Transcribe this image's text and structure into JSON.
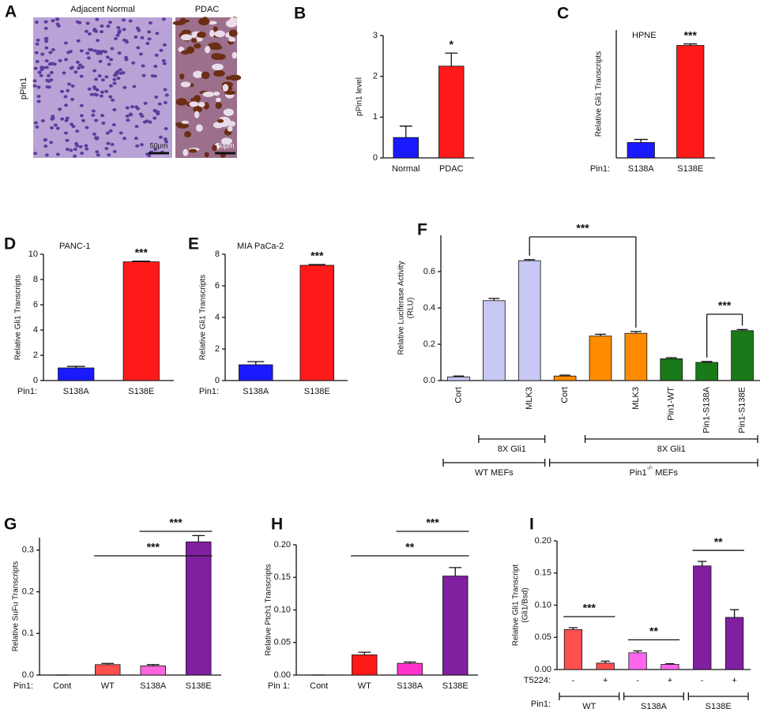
{
  "image_panel": {
    "panel": "A",
    "ylabel": "pPin1",
    "images": [
      {
        "title": "Adjacent Normal",
        "scale_label": "50μm"
      },
      {
        "title": "PDAC",
        "scale_label": "50μm"
      }
    ]
  },
  "chart_data": [
    {
      "type": "bar",
      "panel": "B",
      "ylabel": "pPin1 level",
      "categories": [
        "Normal",
        "PDAC"
      ],
      "values": [
        0.5,
        2.25
      ],
      "errors": [
        0.28,
        0.32
      ],
      "colors": [
        "#1a1aff",
        "#ff1a1a"
      ],
      "ylim": [
        0,
        3
      ],
      "yticks": [
        0,
        1,
        2,
        3
      ],
      "annotations": [
        {
          "text": "*",
          "at": 1
        }
      ]
    },
    {
      "type": "bar",
      "panel": "C",
      "title": "HPNE",
      "ylabel": "Relative Gli1 Transcripts",
      "row_label": "Pin1:",
      "categories": [
        "S138A",
        "S138E"
      ],
      "values": [
        1.0,
        7.3
      ],
      "errors": [
        0.2,
        0.1
      ],
      "colors": [
        "#1a1aff",
        "#ff1a1a"
      ],
      "ylim": [
        0,
        8.3
      ],
      "annotations": [
        {
          "text": "***",
          "at": 1
        }
      ]
    },
    {
      "type": "bar",
      "panel": "D",
      "title": "PANC-1",
      "ylabel": "Relative Gli1 Transcripts",
      "row_label": "Pin1:",
      "categories": [
        "S138A",
        "S138E"
      ],
      "values": [
        1.0,
        9.4
      ],
      "errors": [
        0.12,
        0.05
      ],
      "colors": [
        "#1a1aff",
        "#ff1a1a"
      ],
      "ylim": [
        0,
        10
      ],
      "yticks": [
        0,
        2,
        4,
        6,
        8,
        10
      ],
      "annotations": [
        {
          "text": "***",
          "at": 1
        }
      ]
    },
    {
      "type": "bar",
      "panel": "E",
      "title": "MIA PaCa-2",
      "ylabel": "Relative Gli1 Transcripts",
      "row_label": "Pin1:",
      "categories": [
        "S138A",
        "S138E"
      ],
      "values": [
        1.0,
        7.3
      ],
      "errors": [
        0.2,
        0.05
      ],
      "colors": [
        "#1a1aff",
        "#ff1a1a"
      ],
      "ylim": [
        0,
        8
      ],
      "yticks": [
        0,
        2,
        4,
        6,
        8
      ],
      "annotations": [
        {
          "text": "***",
          "at": 1
        }
      ]
    },
    {
      "type": "bar",
      "panel": "F",
      "ylabel": [
        "Relative Luciferase Activity",
        "(RLU)"
      ],
      "categories": [
        "Cort",
        null,
        "MLK3",
        "Cort",
        null,
        "MLK3",
        "Pin1-WT",
        "Pin1-S138A",
        "Pin1-S138E"
      ],
      "values": [
        0.02,
        0.44,
        0.66,
        0.025,
        0.245,
        0.26,
        0.12,
        0.1,
        0.275
      ],
      "errors": [
        0.005,
        0.012,
        0.006,
        0.005,
        0.01,
        0.01,
        0.006,
        0.005,
        0.006
      ],
      "colors": [
        "#c8c8f4",
        "#c8c8f4",
        "#c8c8f4",
        "#ff8c00",
        "#ff8c00",
        "#ff8c00",
        "#1a7a1a",
        "#1a7a1a",
        "#1a7a1a"
      ],
      "ylim": [
        0,
        0.8
      ],
      "yticks": [
        {
          "value": 0,
          "label": "0.0"
        },
        0.2,
        0.4,
        0.6
      ],
      "annotations": [
        {
          "text": "***",
          "from": 2,
          "to": 5
        },
        {
          "text": "***",
          "from": 7,
          "to": 8
        }
      ],
      "group_rows": [
        {
          "groups": [
            {
              "label": "8X Gli1",
              "from": 1,
              "to": 2
            },
            {
              "label": "8X Gli1",
              "from": 4,
              "to": 8
            }
          ]
        },
        {
          "groups": [
            {
              "label": "WT MEFs",
              "from": 0,
              "to": 2
            },
            {
              "label": "Pin1",
              "superscript": "-/-",
              "suffix": "MEFs",
              "from": 3,
              "to": 8
            }
          ]
        }
      ]
    },
    {
      "type": "bar",
      "panel": "G",
      "ylabel": "Relative SuFu Transcripts",
      "row_label": "Pin1:",
      "categories": [
        "Cont",
        "WT",
        "S138A",
        "S138E"
      ],
      "values": [
        0,
        0.025,
        0.022,
        0.32
      ],
      "errors": [
        0,
        0.003,
        0.003,
        0.015
      ],
      "colors": [
        "#ff5050",
        "#ff5050",
        "#ff66dd",
        "#8020a0"
      ],
      "ylim": [
        0,
        0.33
      ],
      "yticks": [
        {
          "value": 0,
          "label": "0.0"
        },
        0.1,
        0.2,
        0.3
      ],
      "annotations": [
        {
          "text": "***",
          "from": 2,
          "to": 3
        },
        {
          "text": "***",
          "from": 1,
          "to": 3
        }
      ]
    },
    {
      "type": "bar",
      "panel": "H",
      "ylabel": "Relative Ptch1 Transcripts",
      "row_label": "Pin 1:",
      "categories": [
        "Cont",
        "WT",
        "S138A",
        "S138E"
      ],
      "values": [
        0,
        0.031,
        0.018,
        0.152
      ],
      "errors": [
        0,
        0.004,
        0.002,
        0.013
      ],
      "colors": [
        "#ff1a1a",
        "#ff1a1a",
        "#ff33cc",
        "#8020a0"
      ],
      "ylim": [
        0,
        0.2
      ],
      "yticks": [
        {
          "value": 0,
          "label": "0.00"
        },
        0.05,
        {
          "value": 0.1,
          "label": "0.10"
        },
        0.15,
        {
          "value": 0.2,
          "label": "0.20"
        }
      ],
      "annotations": [
        {
          "text": "***",
          "from": 2,
          "to": 3
        },
        {
          "text": "**",
          "from": 1,
          "to": 3
        }
      ]
    },
    {
      "type": "bar",
      "panel": "I",
      "ylabel": [
        "Relative Gli1 Transcript",
        "(Gli1/Bsd)"
      ],
      "row_label": "T5224:",
      "categories": [
        "-",
        "+",
        "-",
        "+",
        "-",
        "+"
      ],
      "values": [
        0.062,
        0.01,
        0.026,
        0.008,
        0.161,
        0.081
      ],
      "errors": [
        0.003,
        0.003,
        0.003,
        0.001,
        0.007,
        0.012
      ],
      "colors": [
        "#ff5050",
        "#ff5050",
        "#ff66ee",
        "#ff66ee",
        "#8020a0",
        "#8020a0"
      ],
      "ylim": [
        0,
        0.2
      ],
      "yticks": [
        {
          "value": 0,
          "label": "0.00"
        },
        0.05,
        {
          "value": 0.1,
          "label": "0.10"
        },
        0.15,
        {
          "value": 0.2,
          "label": "0.20"
        }
      ],
      "annotations": [
        {
          "text": "***",
          "from": 0,
          "to": 1
        },
        {
          "text": "**",
          "from": 2,
          "to": 3
        },
        {
          "text": "**",
          "from": 4,
          "to": 5
        }
      ],
      "group_rows": [
        {
          "label": "Pin1:",
          "groups": [
            {
              "label": "WT",
              "from": 0,
              "to": 1
            },
            {
              "label": "S138A",
              "from": 2,
              "to": 3
            },
            {
              "label": "S138E",
              "from": 4,
              "to": 5
            }
          ]
        }
      ]
    }
  ]
}
